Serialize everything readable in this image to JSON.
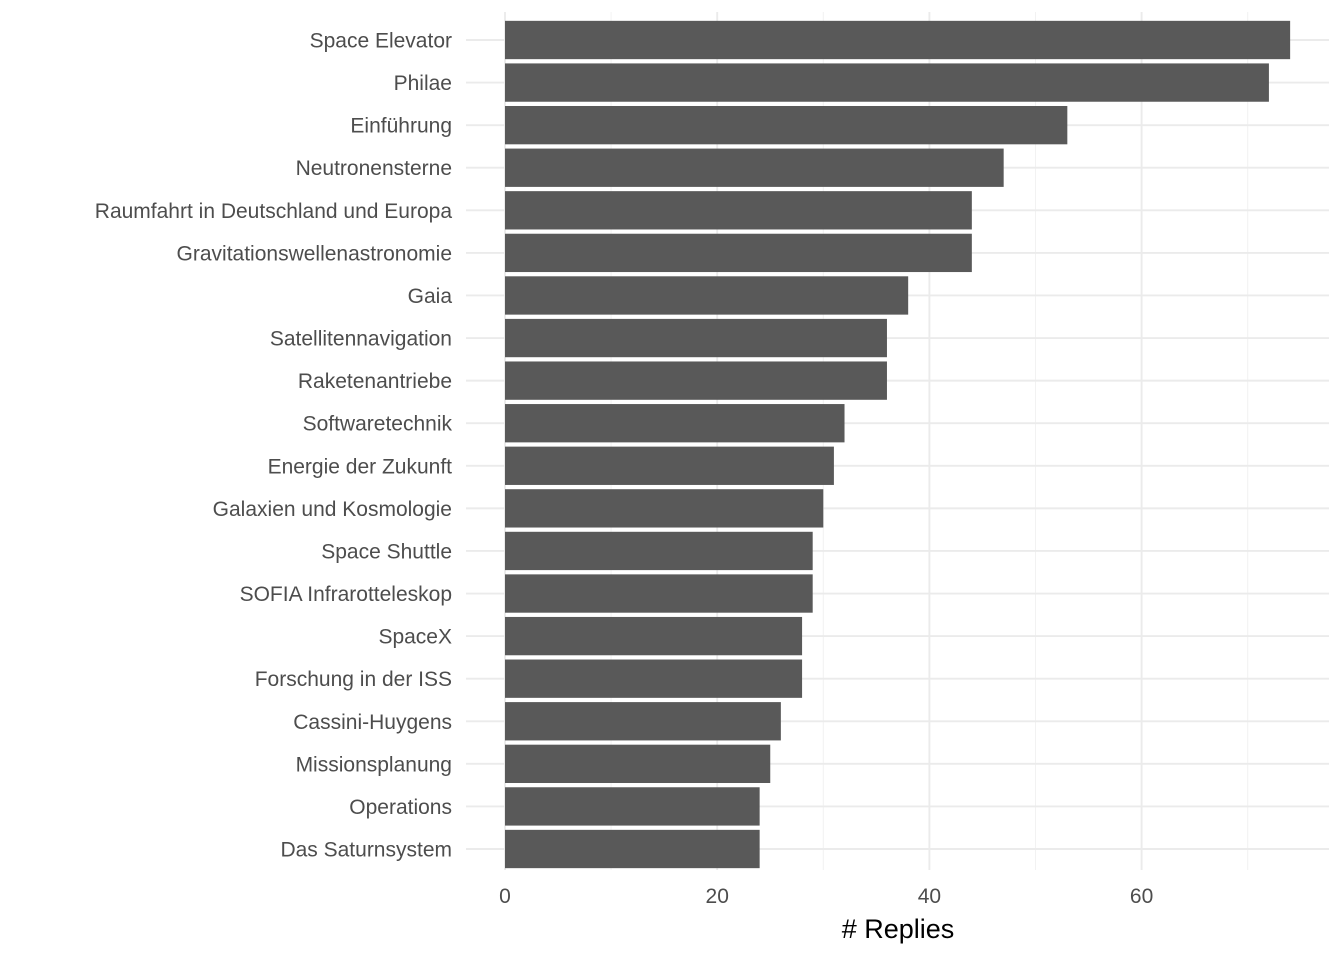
{
  "chart_data": {
    "type": "bar",
    "orientation": "horizontal",
    "categories": [
      "Space Elevator",
      "Philae",
      "Einführung",
      "Neutronensterne",
      "Raumfahrt in Deutschland und Europa",
      "Gravitationswellenastronomie",
      "Gaia",
      "Satellitennavigation",
      "Raketenantriebe",
      "Softwaretechnik",
      "Energie der Zukunft",
      "Galaxien und Kosmologie",
      "Space Shuttle",
      "SOFIA Infrarotteleskop",
      "SpaceX",
      "Forschung in der ISS",
      "Cassini-Huygens",
      "Missionsplanung",
      "Operations",
      "Das Saturnsystem"
    ],
    "values": [
      74,
      72,
      53,
      47,
      44,
      44,
      38,
      36,
      36,
      32,
      31,
      30,
      29,
      29,
      28,
      28,
      26,
      25,
      24,
      24
    ],
    "xlabel": "# Replies",
    "ylabel": "",
    "xlim": [
      0,
      77.6
    ],
    "xticks": [
      "0",
      "20",
      "40",
      "60"
    ],
    "xtick_values": [
      0,
      20,
      40,
      60
    ],
    "grid": true,
    "legend": "none",
    "bar_color": "#595959"
  }
}
